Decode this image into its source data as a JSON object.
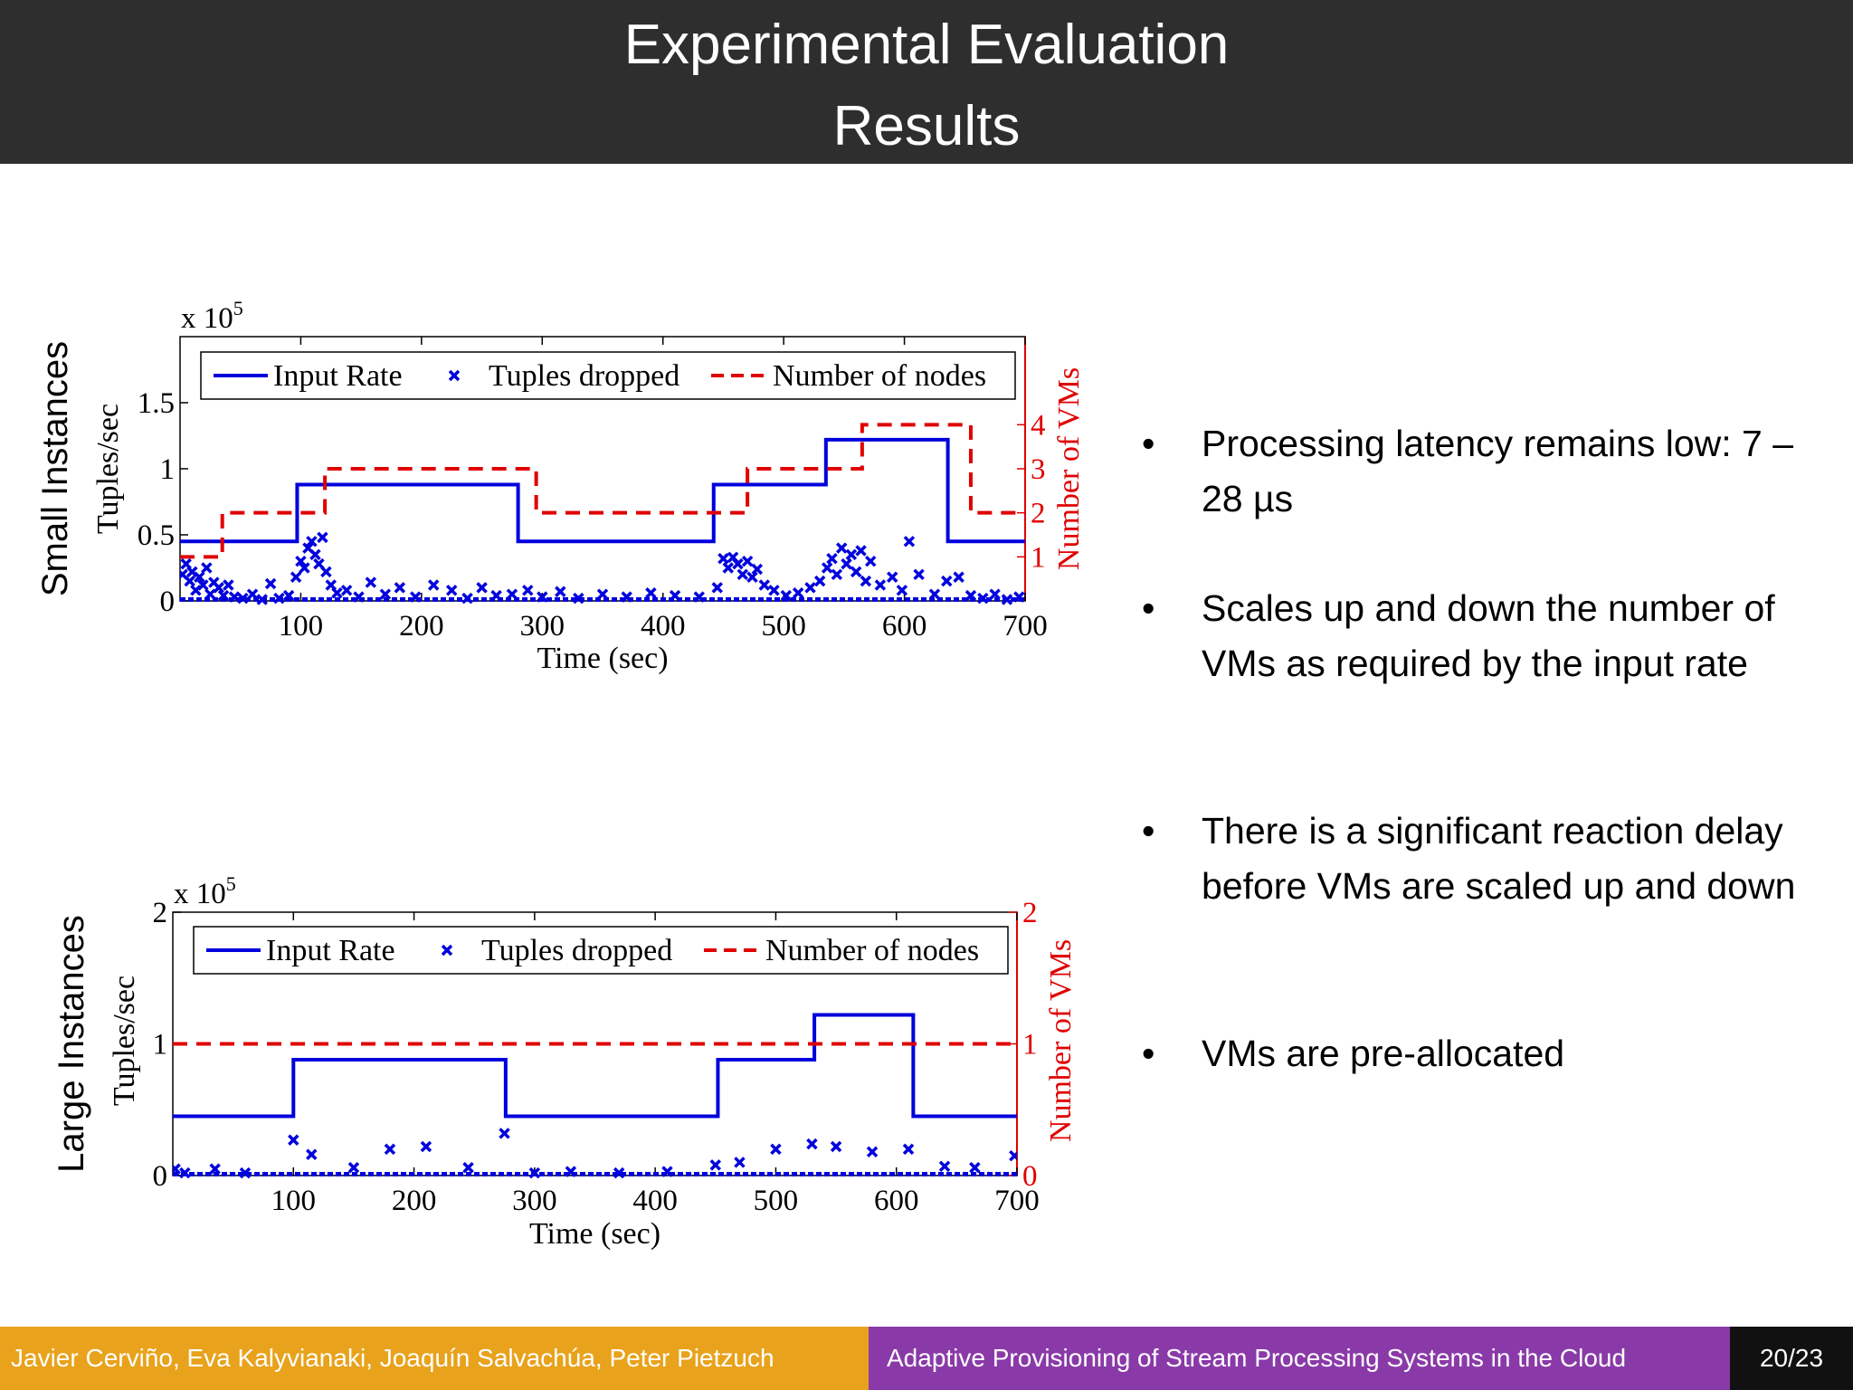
{
  "header": {
    "title_line1": "Experimental Evaluation",
    "title_line2": "Results"
  },
  "chart_data": [
    {
      "type": "line",
      "panel_label": "Small Instances",
      "ylabel": "Tuples/sec",
      "y_multiplier": "x 10^5",
      "y2label": "Number of VMs",
      "xlabel": "Time (sec)",
      "xlim": [
        0,
        700
      ],
      "ylim": [
        0,
        2.0
      ],
      "y2lim": [
        0,
        6
      ],
      "x_ticks": [
        100,
        200,
        300,
        400,
        500,
        600,
        700
      ],
      "y_ticks": [
        0,
        0.5,
        1,
        1.5
      ],
      "y_tick_labels": [
        "0",
        "0.5",
        "1",
        "1.5"
      ],
      "y2_ticks": [
        1,
        2,
        3,
        4
      ],
      "legend": {
        "placement": "top",
        "entries": [
          "Input Rate",
          "Tuples dropped",
          "Number of nodes"
        ]
      },
      "series": [
        {
          "name": "Input Rate",
          "style": "solid",
          "color": "#0000dd",
          "axis": "left",
          "x": [
            0,
            97,
            97,
            280,
            280,
            442,
            442,
            535,
            535,
            636,
            636,
            700
          ],
          "y": [
            0.45,
            0.45,
            0.88,
            0.88,
            0.45,
            0.45,
            0.88,
            0.88,
            1.22,
            1.22,
            0.45,
            0.45
          ]
        },
        {
          "name": "Tuples dropped",
          "style": "marker-x",
          "color": "#0000dd",
          "axis": "left",
          "x": [
            2,
            5,
            8,
            10,
            13,
            16,
            19,
            22,
            25,
            28,
            32,
            36,
            40,
            45,
            52,
            60,
            68,
            75,
            82,
            90,
            96,
            100,
            103,
            106,
            109,
            112,
            115,
            118,
            121,
            125,
            130,
            138,
            148,
            158,
            170,
            182,
            195,
            210,
            225,
            238,
            250,
            262,
            275,
            288,
            300,
            315,
            330,
            350,
            370,
            390,
            410,
            430,
            445,
            450,
            454,
            458,
            462,
            466,
            470,
            474,
            478,
            484,
            492,
            502,
            512,
            522,
            530,
            536,
            540,
            544,
            548,
            552,
            556,
            560,
            564,
            568,
            572,
            580,
            590,
            598,
            604,
            612,
            625,
            635,
            645,
            655,
            665,
            675,
            685,
            695
          ],
          "y": [
            0.2,
            0.28,
            0.15,
            0.22,
            0.08,
            0.18,
            0.12,
            0.25,
            0.05,
            0.14,
            0.1,
            0.04,
            0.12,
            0.03,
            0.02,
            0.05,
            0.01,
            0.13,
            0.02,
            0.04,
            0.18,
            0.3,
            0.25,
            0.4,
            0.45,
            0.35,
            0.28,
            0.48,
            0.22,
            0.12,
            0.06,
            0.08,
            0.03,
            0.14,
            0.05,
            0.1,
            0.03,
            0.12,
            0.08,
            0.02,
            0.1,
            0.04,
            0.05,
            0.08,
            0.03,
            0.07,
            0.02,
            0.05,
            0.03,
            0.06,
            0.04,
            0.03,
            0.1,
            0.32,
            0.25,
            0.33,
            0.28,
            0.2,
            0.3,
            0.18,
            0.24,
            0.12,
            0.08,
            0.04,
            0.06,
            0.1,
            0.15,
            0.25,
            0.32,
            0.2,
            0.4,
            0.28,
            0.35,
            0.22,
            0.38,
            0.15,
            0.3,
            0.12,
            0.18,
            0.08,
            0.45,
            0.2,
            0.05,
            0.15,
            0.18,
            0.04,
            0.02,
            0.05,
            0.01,
            0.03
          ]
        },
        {
          "name": "Number of nodes",
          "style": "dashed",
          "color": "#e00000",
          "axis": "right",
          "x": [
            0,
            35,
            35,
            120,
            120,
            295,
            295,
            470,
            470,
            565,
            565,
            655,
            655,
            700
          ],
          "y": [
            1,
            1,
            2,
            2,
            3,
            3,
            2,
            2,
            3,
            3,
            4,
            4,
            2,
            2
          ]
        }
      ]
    },
    {
      "type": "line",
      "panel_label": "Large Instances",
      "ylabel": "Tuples/sec",
      "y_multiplier": "x 10^5",
      "y2label": "Number of VMs",
      "xlabel": "Time (sec)",
      "xlim": [
        0,
        700
      ],
      "ylim": [
        0,
        2
      ],
      "y2lim": [
        0,
        2
      ],
      "x_ticks": [
        100,
        200,
        300,
        400,
        500,
        600,
        700
      ],
      "y_ticks": [
        0,
        1,
        2
      ],
      "y_tick_labels": [
        "0",
        "1",
        "2"
      ],
      "y2_ticks": [
        0,
        1,
        2
      ],
      "legend": {
        "placement": "top",
        "entries": [
          "Input Rate",
          "Tuples dropped",
          "Number of nodes"
        ]
      },
      "series": [
        {
          "name": "Input Rate",
          "style": "solid",
          "color": "#0000dd",
          "axis": "left",
          "x": [
            0,
            100,
            100,
            276,
            276,
            452,
            452,
            532,
            532,
            614,
            614,
            700
          ],
          "y": [
            0.45,
            0.45,
            0.88,
            0.88,
            0.45,
            0.45,
            0.88,
            0.88,
            1.22,
            1.22,
            0.45,
            0.45
          ]
        },
        {
          "name": "Tuples dropped",
          "style": "marker-x",
          "color": "#0000dd",
          "axis": "left",
          "x": [
            2,
            10,
            35,
            60,
            100,
            115,
            150,
            180,
            210,
            245,
            275,
            300,
            330,
            370,
            410,
            450,
            470,
            500,
            530,
            550,
            580,
            610,
            640,
            665,
            698
          ],
          "y": [
            0.05,
            0.02,
            0.05,
            0.02,
            0.27,
            0.16,
            0.06,
            0.2,
            0.22,
            0.06,
            0.32,
            0.02,
            0.03,
            0.02,
            0.03,
            0.08,
            0.1,
            0.2,
            0.24,
            0.22,
            0.18,
            0.2,
            0.07,
            0.06,
            0.15
          ]
        },
        {
          "name": "Number of nodes",
          "style": "dashed",
          "color": "#e00000",
          "axis": "right",
          "x": [
            0,
            700
          ],
          "y": [
            1,
            1
          ]
        }
      ]
    }
  ],
  "bullets": [
    "Processing latency remains low: 7 – 28 µs",
    "Scales up and down the number of VMs as required by the input rate",
    "There is a significant reaction delay before VMs are scaled up and down",
    "VMs are pre-allocated"
  ],
  "footer": {
    "authors": "Javier Cerviño, Eva Kalyvianaki, Joaquín Salvachúa, Peter Pietzuch",
    "talk_title": "Adaptive Provisioning of Stream Processing Systems in the Cloud",
    "page": "20/23"
  },
  "colors": {
    "header_bg": "#2e2e2e",
    "footer_orange": "#e8a21b",
    "footer_purple": "#8a3aa8",
    "series_blue": "#0000dd",
    "series_red": "#e00000"
  }
}
